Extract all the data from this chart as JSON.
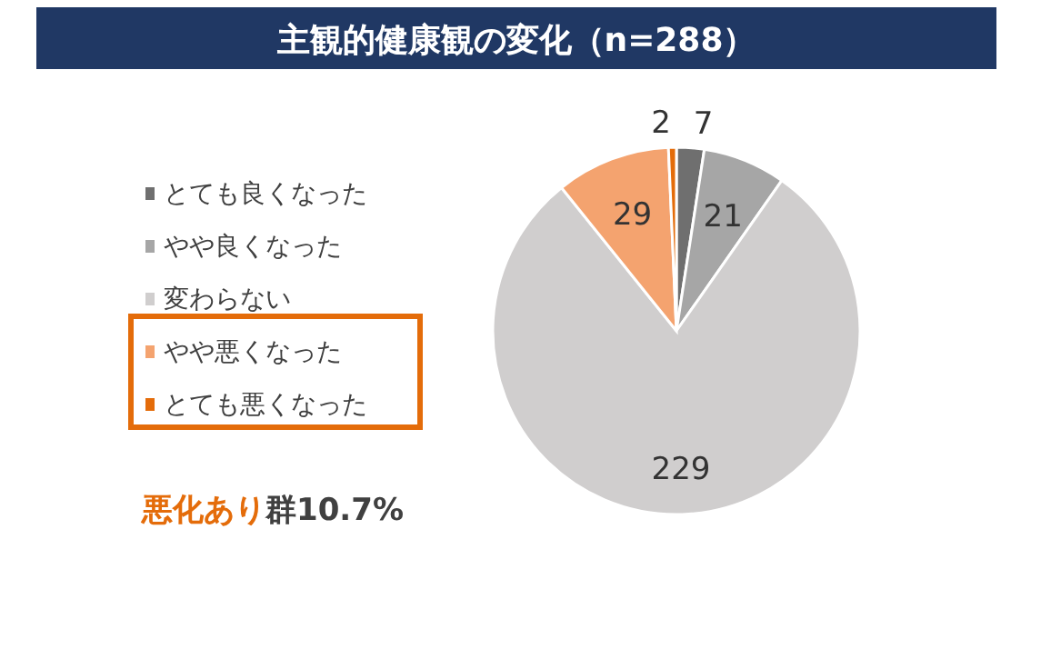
{
  "chart_data": {
    "type": "pie",
    "title": "主観的健康観の変化（n=288）",
    "categories": [
      "とても良くなった",
      "やや良くなった",
      "変わらない",
      "やや悪くなった",
      "とても悪くなった"
    ],
    "values": [
      7,
      21,
      229,
      29,
      2
    ],
    "colors": [
      "#6f6f6f",
      "#a6a6a6",
      "#d0cece",
      "#f4a36f",
      "#e46c0a"
    ],
    "data_labels": true,
    "legend": "left",
    "annotations": [
      "悪化あり",
      "群10.7%"
    ]
  }
}
